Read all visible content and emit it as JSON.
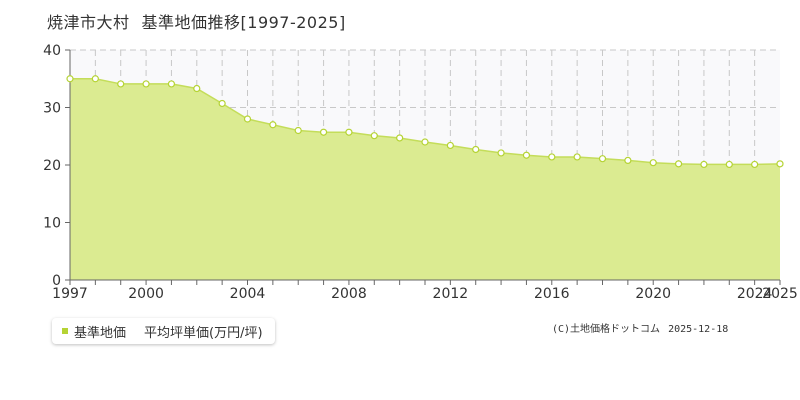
{
  "title": {
    "location": "焼津市大村",
    "subject": "基準地価推移[1997-2025]"
  },
  "legend": {
    "series_label": "基準地価",
    "unit_label": "平均坪単価(万円/坪)"
  },
  "credit": {
    "source": "(C)土地価格ドットコム",
    "date": "2025-12-18"
  },
  "colors": {
    "area_fill": "#dbeb91",
    "line": "#c4dd5a",
    "marker_fill": "#ffffff",
    "marker_stroke": "#b5d334",
    "legend_swatch": "#b5d334",
    "grid": "#c8c8c8",
    "plot_bg": "#f9f9fb",
    "axis": "#666666"
  },
  "chart_data": {
    "type": "area",
    "series": [
      {
        "x": [
          1997,
          1998,
          1999,
          2000,
          2001,
          2002,
          2003,
          2004,
          2005,
          2006,
          2007,
          2008,
          2009,
          2010,
          2011,
          2012,
          2013,
          2014,
          2015,
          2016,
          2017,
          2018,
          2019,
          2020,
          2021,
          2022,
          2023,
          2024,
          2025
        ],
        "values": [
          35.0,
          35.0,
          34.1,
          34.1,
          34.1,
          33.3,
          30.7,
          28.0,
          27.0,
          26.0,
          25.7,
          25.7,
          25.1,
          24.7,
          24.0,
          23.4,
          22.7,
          22.1,
          21.7,
          21.4,
          21.4,
          21.1,
          20.8,
          20.4,
          20.2,
          20.1,
          20.1,
          20.1,
          20.2
        ]
      }
    ],
    "xlim": [
      1997,
      2025
    ],
    "ylim": [
      0,
      40
    ],
    "yticks": [
      0,
      10,
      20,
      30,
      40
    ],
    "xtick_labels": [
      "1997",
      "2000",
      "2004",
      "2008",
      "2012",
      "2016",
      "2020",
      "2024",
      "2025"
    ],
    "grid": true,
    "legend_position": "bottom-left"
  }
}
